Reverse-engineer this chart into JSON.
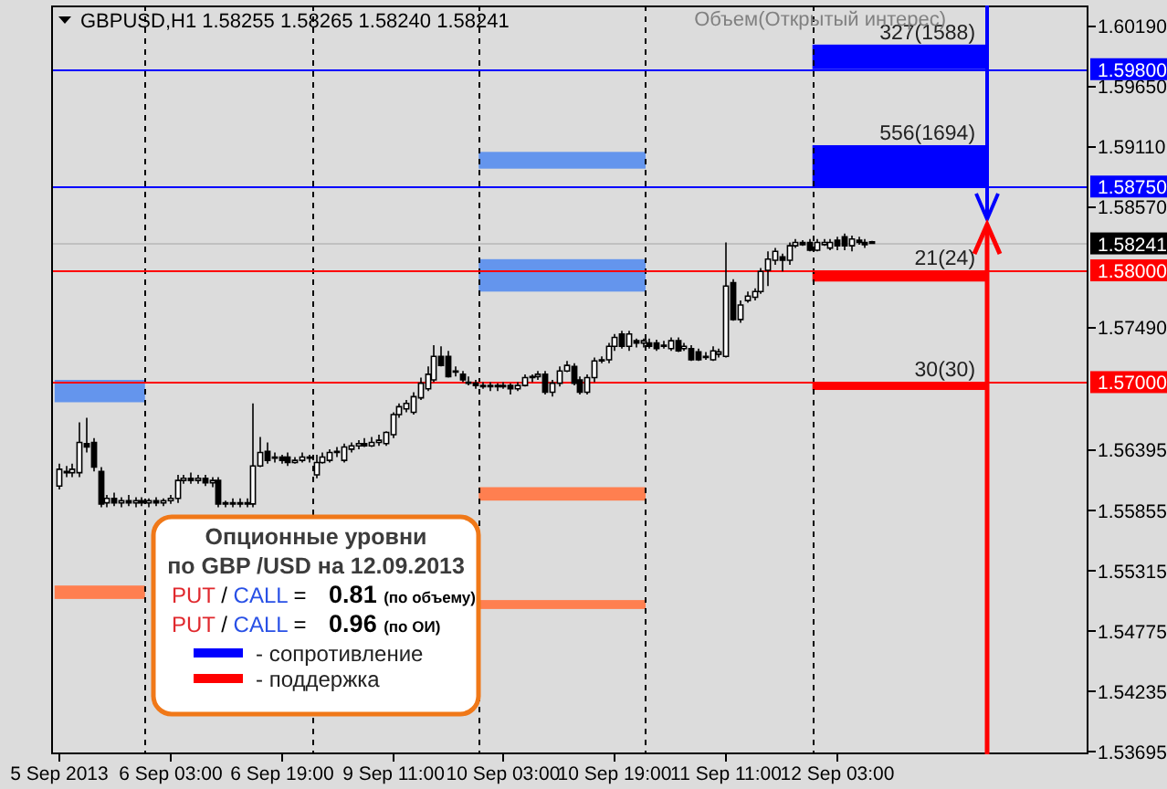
{
  "chart_data": {
    "type": "candlestick",
    "title": "GBPUSD,H1 1.58255 1.58265 1.58240 1.58241",
    "subtitle": "Объем(Открытый интерес)",
    "categories": [
      "5 Sep 2013",
      null,
      null,
      null,
      null,
      null,
      null,
      null,
      null,
      null,
      null,
      null,
      null,
      null,
      null,
      null,
      "6 Sep 03:00",
      null,
      null,
      null,
      null,
      null,
      null,
      null,
      null,
      null,
      null,
      null,
      null,
      null,
      null,
      null,
      "6 Sep 19:00",
      null,
      null,
      null,
      null,
      null,
      null,
      null,
      null,
      null,
      null,
      null,
      null,
      null,
      null,
      null,
      "9 Sep 11:00",
      null,
      null,
      null,
      null,
      null,
      null,
      null,
      null,
      null,
      null,
      null,
      null,
      null,
      null,
      null,
      "10 Sep 03:00",
      null,
      null,
      null,
      null,
      null,
      null,
      null,
      null,
      null,
      null,
      null,
      null,
      null,
      null,
      null,
      "10 Sep 19:00",
      null,
      null,
      null,
      null,
      null,
      null,
      null,
      null,
      null,
      null,
      null,
      null,
      null,
      null,
      null,
      "11 Sep 11:00",
      null,
      null,
      null,
      null,
      null,
      null,
      null,
      null,
      null,
      null,
      null,
      null,
      null,
      null,
      null,
      "12 Sep 03:00",
      null,
      null,
      null,
      null,
      null,
      null,
      null,
      null,
      null,
      null,
      null,
      null,
      null,
      null,
      null,
      null,
      null,
      null,
      null,
      null,
      null,
      null,
      null,
      null,
      null,
      null,
      null,
      null,
      null,
      null,
      null,
      null,
      null,
      null,
      null,
      null
    ],
    "ohlc": [
      [
        1.5607,
        1.5627,
        1.5604,
        1.5622
      ],
      [
        1.562,
        1.5625,
        1.5615,
        1.5619
      ],
      [
        1.5619,
        1.5627,
        1.5615,
        1.5622
      ],
      [
        1.5619,
        1.5664,
        1.5615,
        1.5646
      ],
      [
        1.5645,
        1.5668,
        1.5637,
        1.5642
      ],
      [
        1.5646,
        1.565,
        1.562,
        1.5624
      ],
      [
        1.562,
        1.5624,
        1.5588,
        1.5591
      ],
      [
        1.5592,
        1.5599,
        1.5588,
        1.5596
      ],
      [
        1.5596,
        1.5601,
        1.5589,
        1.5592
      ],
      [
        1.5592,
        1.5597,
        1.5588,
        1.5594
      ],
      [
        1.5594,
        1.5599,
        1.5589,
        1.5592
      ],
      [
        1.5592,
        1.5597,
        1.5588,
        1.5594
      ],
      [
        1.5594,
        1.5597,
        1.5589,
        1.5592
      ],
      [
        1.5592,
        1.5596,
        1.5588,
        1.5594
      ],
      [
        1.5594,
        1.5597,
        1.5589,
        1.5592
      ],
      [
        1.5592,
        1.5596,
        1.5589,
        1.5594
      ],
      [
        1.5594,
        1.5599,
        1.5591,
        1.5596
      ],
      [
        1.5596,
        1.5617,
        1.5592,
        1.5612
      ],
      [
        1.5612,
        1.5617,
        1.5609,
        1.5614
      ],
      [
        1.5614,
        1.5619,
        1.5609,
        1.5612
      ],
      [
        1.5612,
        1.5617,
        1.5609,
        1.5614
      ],
      [
        1.5614,
        1.5617,
        1.5607,
        1.561
      ],
      [
        1.561,
        1.5615,
        1.5606,
        1.5612
      ],
      [
        1.5612,
        1.5615,
        1.5588,
        1.5591
      ],
      [
        1.5591,
        1.5594,
        1.5588,
        1.5592
      ],
      [
        1.5592,
        1.5596,
        1.5588,
        1.5591
      ],
      [
        1.5591,
        1.5596,
        1.5588,
        1.5592
      ],
      [
        1.5592,
        1.5596,
        1.5588,
        1.5591
      ],
      [
        1.5591,
        1.5681,
        1.5588,
        1.5625
      ],
      [
        1.5625,
        1.5651,
        1.5624,
        1.5637
      ],
      [
        1.5638,
        1.5646,
        1.5627,
        1.563
      ],
      [
        1.5632,
        1.5637,
        1.5628,
        1.5633
      ],
      [
        1.5633,
        1.5635,
        1.5627,
        1.563
      ],
      [
        1.5633,
        1.5637,
        1.5625,
        1.5628
      ],
      [
        1.5628,
        1.5633,
        1.5627,
        1.563
      ],
      [
        1.563,
        1.5637,
        1.5628,
        1.5633
      ],
      [
        1.5633,
        1.5635,
        1.5628,
        1.5632
      ],
      [
        1.5617,
        1.5635,
        1.5614,
        1.5628
      ],
      [
        1.5628,
        1.5637,
        1.5627,
        1.5633
      ],
      [
        1.563,
        1.564,
        1.5628,
        1.5637
      ],
      [
        1.5637,
        1.5642,
        1.5633,
        1.5638
      ],
      [
        1.563,
        1.5645,
        1.5628,
        1.5642
      ],
      [
        1.564,
        1.5646,
        1.5637,
        1.5643
      ],
      [
        1.5643,
        1.5648,
        1.564,
        1.5645
      ],
      [
        1.5645,
        1.565,
        1.5642,
        1.5643
      ],
      [
        1.5643,
        1.5651,
        1.5642,
        1.5646
      ],
      [
        1.5646,
        1.5653,
        1.5643,
        1.5648
      ],
      [
        1.5645,
        1.5656,
        1.5643,
        1.5655
      ],
      [
        1.5653,
        1.5673,
        1.565,
        1.5671
      ],
      [
        1.5671,
        1.5681,
        1.5668,
        1.5678
      ],
      [
        1.5676,
        1.5684,
        1.5673,
        1.5681
      ],
      [
        1.5673,
        1.5691,
        1.5671,
        1.5687
      ],
      [
        1.5686,
        1.5704,
        1.5684,
        1.5699
      ],
      [
        1.5694,
        1.5714,
        1.5692,
        1.5707
      ],
      [
        1.5702,
        1.5733,
        1.57,
        1.5723
      ],
      [
        1.5723,
        1.5732,
        1.5714,
        1.5715
      ],
      [
        1.5723,
        1.5728,
        1.5704,
        1.5705
      ],
      [
        1.5709,
        1.5714,
        1.5705,
        1.571
      ],
      [
        1.5707,
        1.571,
        1.57,
        1.5702
      ],
      [
        1.57,
        1.5705,
        1.5697,
        1.5699
      ],
      [
        1.5699,
        1.5702,
        1.5694,
        1.5697
      ],
      [
        1.5697,
        1.57,
        1.5694,
        1.5696
      ],
      [
        1.5696,
        1.57,
        1.5692,
        1.5697
      ],
      [
        1.5697,
        1.5699,
        1.5692,
        1.5696
      ],
      [
        1.5696,
        1.57,
        1.5694,
        1.5697
      ],
      [
        1.5697,
        1.5699,
        1.5689,
        1.5694
      ],
      [
        1.5694,
        1.57,
        1.5692,
        1.5697
      ],
      [
        1.5697,
        1.5707,
        1.5696,
        1.5704
      ],
      [
        1.5704,
        1.5707,
        1.57,
        1.5705
      ],
      [
        1.5705,
        1.571,
        1.5702,
        1.5707
      ],
      [
        1.5707,
        1.571,
        1.5689,
        1.5691
      ],
      [
        1.5691,
        1.5702,
        1.5687,
        1.5699
      ],
      [
        1.5699,
        1.5714,
        1.5696,
        1.571
      ],
      [
        1.571,
        1.5719,
        1.5709,
        1.5715
      ],
      [
        1.5714,
        1.5717,
        1.5697,
        1.5699
      ],
      [
        1.5702,
        1.5705,
        1.5689,
        1.5691
      ],
      [
        1.5691,
        1.5707,
        1.5689,
        1.5704
      ],
      [
        1.5704,
        1.5722,
        1.57,
        1.5719
      ],
      [
        1.5719,
        1.5723,
        1.5717,
        1.572
      ],
      [
        1.572,
        1.5735,
        1.5717,
        1.5732
      ],
      [
        1.5732,
        1.5743,
        1.5728,
        1.574
      ],
      [
        1.5743,
        1.5746,
        1.573,
        1.5732
      ],
      [
        1.5732,
        1.5746,
        1.5728,
        1.5743
      ],
      [
        1.5737,
        1.5739,
        1.5731,
        1.5735
      ],
      [
        1.5735,
        1.5739,
        1.5731,
        1.5737
      ],
      [
        1.5735,
        1.5739,
        1.573,
        1.5732
      ],
      [
        1.5735,
        1.5738,
        1.5728,
        1.573
      ],
      [
        1.5732,
        1.5737,
        1.573,
        1.5733
      ],
      [
        1.573,
        1.574,
        1.5728,
        1.5737
      ],
      [
        1.5737,
        1.574,
        1.5727,
        1.5728
      ],
      [
        1.573,
        1.5735,
        1.5728,
        1.5732
      ],
      [
        1.573,
        1.5733,
        1.5719,
        1.572
      ],
      [
        1.5727,
        1.573,
        1.5719,
        1.572
      ],
      [
        1.5722,
        1.5727,
        1.572,
        1.5723
      ],
      [
        1.572,
        1.5732,
        1.5719,
        1.5728
      ],
      [
        1.5725,
        1.573,
        1.5722,
        1.5727
      ],
      [
        1.5723,
        1.5825,
        1.5722,
        1.5786
      ],
      [
        1.5789,
        1.5792,
        1.5755,
        1.5756
      ],
      [
        1.5756,
        1.5773,
        1.5753,
        1.5769
      ],
      [
        1.5773,
        1.5781,
        1.5771,
        1.5777
      ],
      [
        1.5776,
        1.5784,
        1.5773,
        1.5781
      ],
      [
        1.5781,
        1.5802,
        1.5779,
        1.5799
      ],
      [
        1.58,
        1.5817,
        1.5786,
        1.581
      ],
      [
        1.5809,
        1.582,
        1.5805,
        1.5817
      ],
      [
        1.5812,
        1.5815,
        1.5799,
        1.5809
      ],
      [
        1.5809,
        1.5825,
        1.5805,
        1.5822
      ],
      [
        1.5822,
        1.5828,
        1.582,
        1.5825
      ],
      [
        1.5825,
        1.5827,
        1.5822,
        1.5823
      ],
      [
        1.5825,
        1.5828,
        1.5817,
        1.5818
      ],
      [
        1.5818,
        1.5828,
        1.5817,
        1.5825
      ],
      [
        1.5823,
        1.5828,
        1.5822,
        1.5825
      ],
      [
        1.582,
        1.5828,
        1.5818,
        1.5825
      ],
      [
        1.5827,
        1.583,
        1.5818,
        1.5822
      ],
      [
        1.583,
        1.5833,
        1.5818,
        1.5822
      ],
      [
        1.5822,
        1.5831,
        1.5817,
        1.5828
      ],
      [
        1.5827,
        1.583,
        1.5823,
        1.5825
      ],
      [
        1.5825,
        1.5828,
        1.582,
        1.5823
      ],
      [
        1.58255,
        1.58265,
        1.5824,
        1.58241
      ],
      null,
      null,
      null,
      null,
      null,
      null,
      null,
      null,
      null,
      null,
      null,
      null,
      null,
      null,
      null,
      null,
      null,
      null,
      null,
      null,
      null,
      null,
      null,
      null,
      null,
      null,
      null,
      null,
      null,
      null,
      null
    ],
    "ylim": [
      1.5367,
      1.6037
    ],
    "yticks": [
      {
        "value": 1.6019,
        "label": "1.60190"
      },
      {
        "value": 1.5965,
        "label": "1.59650"
      },
      {
        "value": 1.5911,
        "label": "1.59110"
      },
      {
        "value": 1.5857,
        "label": "1.58570"
      },
      {
        "value": 1.5749,
        "label": "1.57490"
      },
      {
        "value": 1.56395,
        "label": "1.56395"
      },
      {
        "value": 1.55855,
        "label": "1.55855"
      },
      {
        "value": 1.55315,
        "label": "1.55315"
      },
      {
        "value": 1.54775,
        "label": "1.54775"
      },
      {
        "value": 1.54235,
        "label": "1.54235"
      },
      {
        "value": 1.53695,
        "label": "1.53695"
      }
    ],
    "bands": [
      {
        "axis": "y",
        "from": 1.598,
        "to": 1.6002,
        "label": "327(1588)",
        "color": "#0000ff"
      },
      {
        "axis": "y",
        "from": 1.5875,
        "to": 1.5912,
        "label": "556(1694)",
        "color": "#0000ff"
      },
      {
        "axis": "y",
        "from": 1.579,
        "to": 1.58,
        "label": "21(24)",
        "color": "#ff0000"
      },
      {
        "axis": "y",
        "from": 1.5693,
        "to": 1.57,
        "label": "30(30)",
        "color": "#ff0000"
      },
      {
        "axis": "y",
        "from": 1.5891,
        "to": 1.5906,
        "color": "#6495ed"
      },
      {
        "axis": "y",
        "from": 1.5781,
        "to": 1.581,
        "color": "#6495ed"
      },
      {
        "axis": "y",
        "from": 1.5682,
        "to": 1.5702,
        "color": "#6495ed"
      },
      {
        "axis": "y",
        "from": 1.5594,
        "to": 1.5606,
        "color": "#ff7f50"
      },
      {
        "axis": "y",
        "from": 1.5506,
        "to": 1.5518,
        "color": "#ff7f50"
      },
      {
        "axis": "y",
        "from": 1.5497,
        "to": 1.5505,
        "color": "#ff7f50"
      }
    ],
    "ref_lines": [
      {
        "axis": "y",
        "value": 1.598,
        "label": "1.59800",
        "color": "#0000ff"
      },
      {
        "axis": "y",
        "value": 1.5875,
        "label": "1.58750",
        "color": "#0000ff"
      },
      {
        "axis": "y",
        "value": 1.58241,
        "label": "1.58241",
        "color": "#c0c0c0"
      },
      {
        "axis": "y",
        "value": 1.58,
        "label": "1.58000",
        "color": "#ff0000"
      },
      {
        "axis": "y",
        "value": 1.57,
        "label": "1.57000",
        "color": "#ff0000"
      }
    ],
    "annotations": [
      "Опционные уровни",
      "по GBP /USD на 12.09.2013",
      "PUT / CALL = 0.81 (по объему)",
      "PUT / CALL = 0.96 (по ОИ)",
      "- сопротивление",
      "- поддержка"
    ]
  }
}
